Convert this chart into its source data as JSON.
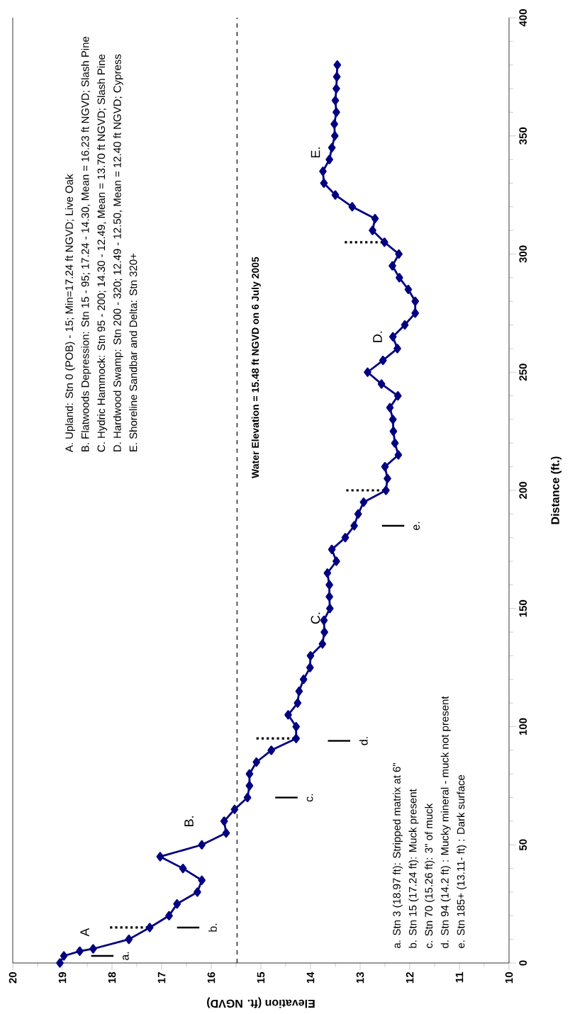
{
  "chart_data": {
    "type": "line",
    "xlabel": "Elevation (ft. NGVD)",
    "ylabel": "Distance (ft.)",
    "x": [
      19.05,
      18.97,
      18.65,
      18.38,
      17.66,
      17.24,
      16.85,
      16.69,
      16.28,
      16.19,
      16.57,
      17.03,
      16.19,
      15.7,
      15.74,
      15.53,
      15.27,
      15.23,
      15.23,
      15.09,
      14.79,
      14.29,
      14.29,
      14.45,
      14.26,
      14.23,
      14.14,
      14.01,
      14.0,
      13.76,
      13.72,
      13.73,
      13.61,
      13.62,
      13.62,
      13.66,
      13.48,
      13.57,
      13.3,
      13.12,
      13.04,
      12.93,
      12.48,
      12.45,
      12.5,
      12.23,
      12.3,
      12.33,
      12.34,
      12.4,
      12.24,
      12.57,
      12.85,
      12.54,
      12.25,
      12.34,
      12.1,
      11.89,
      11.89,
      12.03,
      12.21,
      12.35,
      12.22,
      12.51,
      12.75,
      12.7,
      13.16,
      13.5,
      13.73,
      13.75,
      13.62,
      13.57,
      13.51,
      13.52,
      13.48,
      13.5,
      13.48,
      13.47,
      13.46
    ],
    "series": [
      {
        "color": "#000080",
        "values": [
          0,
          3,
          5,
          6,
          10,
          15,
          20,
          25,
          30,
          35,
          40,
          45,
          50,
          55,
          60,
          65,
          70,
          75,
          80,
          85,
          90,
          95,
          100,
          105,
          110,
          115,
          120,
          125,
          130,
          135,
          140,
          145,
          150,
          155,
          160,
          165,
          170,
          175,
          180,
          185,
          190,
          195,
          200,
          205,
          210,
          215,
          220,
          225,
          230,
          235,
          240,
          245,
          250,
          255,
          260,
          265,
          270,
          275,
          280,
          285,
          290,
          295,
          300,
          305,
          310,
          315,
          320,
          325,
          330,
          335,
          340,
          345,
          350,
          355,
          360,
          365,
          370,
          375,
          380
        ]
      }
    ],
    "xlim": [
      20,
      10
    ],
    "xticks": [
      20,
      19,
      18,
      17,
      16,
      15,
      14,
      13,
      12,
      11,
      10
    ],
    "ylim": [
      0,
      400
    ],
    "yticks": [
      0,
      50,
      100,
      150,
      200,
      250,
      300,
      350,
      400
    ],
    "marker": "diamond",
    "line_style": "solid",
    "grid": false,
    "ref_lines": [
      {
        "axis": "x",
        "value": 15.48,
        "label": "Water Elevation = 15.48 ft NGVD on 6 July 2005",
        "line_style": "dashed",
        "color": "#000000"
      }
    ],
    "annotations": [
      "A. Upland: Stn 0 (POB) - 15; Min=17.24 ft NGVD; Live Oak",
      "B. Flatwoods Depression: Stn 15 - 95; 17.24 - 14.30, Mean = 16.23 ft NGVD; Slash Pine",
      "C. Hydric Hammock: Stn 95 - 200; 14.30 - 12.49, Mean = 13.70 ft NGVD; Slash Pine",
      "D. Hardwood Swamp: Stn 200 - 320; 12.49 - 12.50, Mean = 12.40 ft NGVD; Cypress",
      "E. Shoreline Sandbar and Delta: Stn 320+",
      "a. Stn 3 (18.97 ft): Stripped matrix at 6\"",
      "b. Stn 15 (17.24 ft): Muck present",
      "c. Stn 70 (15.26 ft): 3\" of muck",
      "d. Stn 94 (14.2 ft) : Mucky mineral - muck not present",
      "e. Stn 185+ (13.11- ft) : Dark surface",
      "A",
      "B.",
      "C.",
      "D.",
      "E.",
      "a.",
      "b.",
      "c.",
      "d.",
      "e."
    ]
  }
}
